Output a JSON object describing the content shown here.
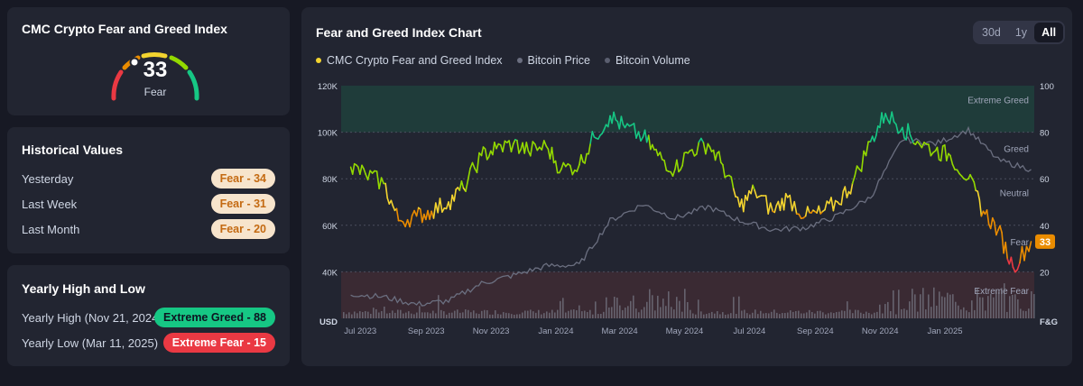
{
  "gauge": {
    "title": "CMC Crypto Fear and Greed Index",
    "value": "33",
    "label": "Fear"
  },
  "historical": {
    "title": "Historical Values",
    "rows": [
      {
        "label": "Yesterday",
        "value": "Fear - 34"
      },
      {
        "label": "Last Week",
        "value": "Fear - 31"
      },
      {
        "label": "Last Month",
        "value": "Fear - 20"
      }
    ]
  },
  "yearly": {
    "title": "Yearly High and Low",
    "high_label": "Yearly High",
    "high_date": "(Nov 21, 2024)",
    "high_value": "Extreme Greed - 88",
    "low_label": "Yearly Low",
    "low_date": "(Mar 11, 2025)",
    "low_value": "Extreme Fear - 15"
  },
  "chart_header": {
    "title": "Fear and Greed Index Chart",
    "ranges": [
      "30d",
      "1y",
      "All"
    ],
    "active_range": "All"
  },
  "colors": {
    "extreme_fear": "#ea3943",
    "fear": "#ea8c00",
    "neutral": "#f3d42f",
    "greed": "#93d900",
    "extreme_greed": "#16c784",
    "price_line": "#6b6f80",
    "volume": "#8a8f9e"
  },
  "chart_data": {
    "type": "line",
    "legend": [
      "CMC Crypto Fear and Greed Index",
      "Bitcoin Price",
      "Bitcoin Volume"
    ],
    "x_ticks": [
      "Jul 2023",
      "Sep 2023",
      "Nov 2023",
      "Jan 2024",
      "Mar 2024",
      "May 2024",
      "Jul 2024",
      "Sep 2024",
      "Nov 2024",
      "Jan 2025"
    ],
    "y_left_label": "USD",
    "y_left_ticks": [
      "120K",
      "100K",
      "80K",
      "60K",
      "40K"
    ],
    "y_left_range": [
      20000,
      120000
    ],
    "y_right_label": "F&G",
    "y_right_ticks": [
      "100",
      "80",
      "60",
      "40",
      "20"
    ],
    "y_right_range": [
      0,
      100
    ],
    "zones": [
      "Extreme Greed",
      "Greed",
      "Neutral",
      "Fear",
      "Extreme Fear"
    ],
    "current_value": "33",
    "series": [
      {
        "name": "CMC Crypto Fear and Greed Index",
        "x": [
          "2023-07-01",
          "2023-07-15",
          "2023-08-01",
          "2023-08-15",
          "2023-09-01",
          "2023-09-15",
          "2023-10-01",
          "2023-10-15",
          "2023-11-01",
          "2023-11-15",
          "2023-12-01",
          "2023-12-15",
          "2024-01-01",
          "2024-01-15",
          "2024-02-01",
          "2024-02-15",
          "2024-03-01",
          "2024-03-15",
          "2024-04-01",
          "2024-04-15",
          "2024-05-01",
          "2024-05-15",
          "2024-06-01",
          "2024-06-15",
          "2024-07-01",
          "2024-07-15",
          "2024-08-01",
          "2024-08-15",
          "2024-09-01",
          "2024-09-15",
          "2024-10-01",
          "2024-10-15",
          "2024-11-01",
          "2024-11-15",
          "2024-12-01",
          "2024-12-15",
          "2025-01-01",
          "2025-01-15",
          "2025-02-01",
          "2025-02-15",
          "2025-03-01",
          "2025-03-15",
          "2025-04-01"
        ],
        "y": [
          65,
          62,
          58,
          42,
          44,
          46,
          50,
          56,
          70,
          73,
          75,
          72,
          74,
          64,
          66,
          78,
          87,
          82,
          78,
          70,
          64,
          72,
          75,
          66,
          48,
          55,
          46,
          52,
          44,
          45,
          50,
          58,
          76,
          88,
          82,
          76,
          72,
          70,
          60,
          46,
          38,
          22,
          33
        ]
      },
      {
        "name": "Bitcoin Price",
        "x": [
          "2023-07-01",
          "2023-08-01",
          "2023-09-01",
          "2023-10-01",
          "2023-11-01",
          "2023-12-01",
          "2024-01-01",
          "2024-02-01",
          "2024-03-01",
          "2024-04-01",
          "2024-05-01",
          "2024-06-01",
          "2024-07-01",
          "2024-08-01",
          "2024-09-01",
          "2024-10-01",
          "2024-11-01",
          "2024-12-01",
          "2025-01-01",
          "2025-02-01",
          "2025-03-01",
          "2025-04-01"
        ],
        "y": [
          30500,
          29200,
          26000,
          27500,
          35000,
          38500,
          42500,
          43000,
          62000,
          69000,
          63000,
          68000,
          62000,
          58000,
          59000,
          64000,
          72000,
          97000,
          95000,
          101000,
          88000,
          84000
        ]
      }
    ]
  }
}
